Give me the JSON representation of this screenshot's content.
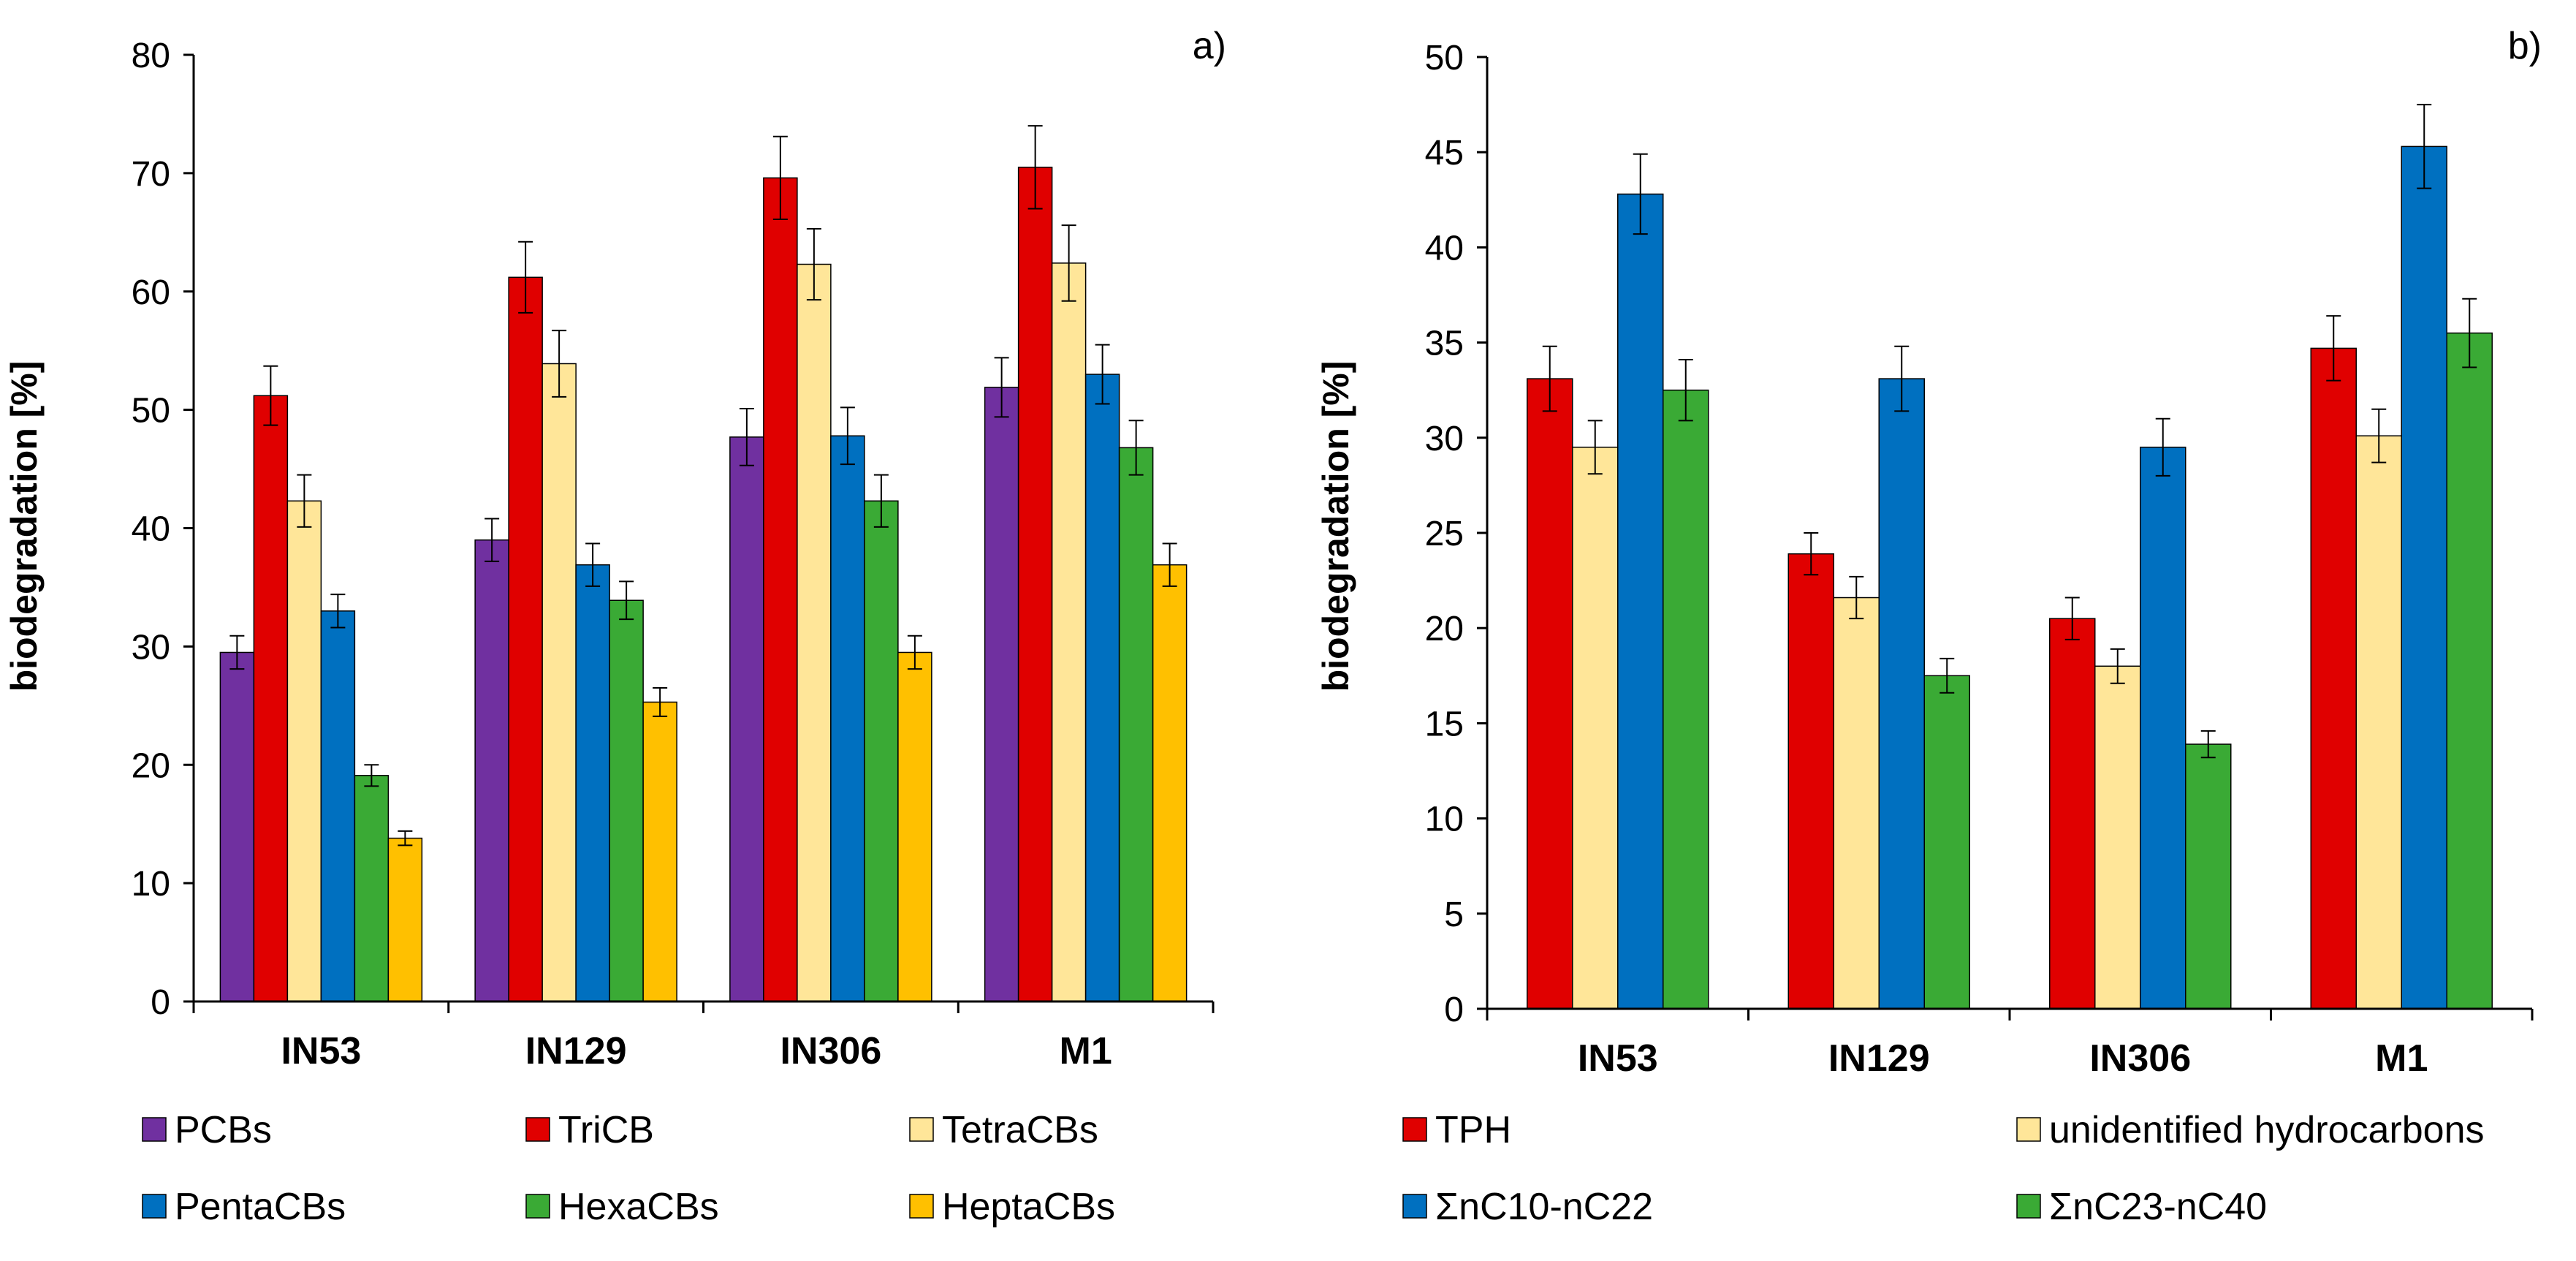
{
  "chart_data": [
    {
      "type": "bar",
      "panel_label": "a)",
      "title": "",
      "xlabel": "",
      "ylabel": "biodegradation  [%]",
      "ylim": [
        0,
        80
      ],
      "yticks": [
        0,
        10,
        20,
        30,
        40,
        50,
        60,
        70,
        80
      ],
      "grid": false,
      "legend_position": "bottom",
      "categories": [
        "IN53",
        "IN129",
        "IN306",
        "M1"
      ],
      "series": [
        {
          "name": "PCBs",
          "color": "#7030a0",
          "values": [
            29.5,
            39,
            47.7,
            51.9
          ],
          "errors": [
            1.4,
            1.8,
            2.4,
            2.5
          ]
        },
        {
          "name": "TriCB",
          "color": "#e00000",
          "values": [
            51.2,
            61.2,
            69.6,
            70.5
          ],
          "errors": [
            2.5,
            3.0,
            3.5,
            3.5
          ]
        },
        {
          "name": "TetraCBs",
          "color": "#ffe699",
          "values": [
            42.3,
            53.9,
            62.3,
            62.4
          ],
          "errors": [
            2.2,
            2.8,
            3.0,
            3.2
          ]
        },
        {
          "name": "PentaCBs",
          "color": "#0070c0",
          "values": [
            33.0,
            36.9,
            47.8,
            53.0
          ],
          "errors": [
            1.4,
            1.8,
            2.4,
            2.5
          ]
        },
        {
          "name": "HexaCBs",
          "color": "#3aaa35",
          "values": [
            19.1,
            33.9,
            42.3,
            46.8
          ],
          "errors": [
            0.9,
            1.6,
            2.2,
            2.3
          ]
        },
        {
          "name": "HeptaCBs",
          "color": "#ffc000",
          "values": [
            13.8,
            25.3,
            29.5,
            36.9
          ],
          "errors": [
            0.6,
            1.2,
            1.4,
            1.8
          ]
        }
      ]
    },
    {
      "type": "bar",
      "panel_label": "b)",
      "title": "",
      "xlabel": "",
      "ylabel": "biodegradation  [%]",
      "ylim": [
        0,
        50
      ],
      "yticks": [
        0,
        5,
        10,
        15,
        20,
        25,
        30,
        35,
        40,
        45,
        50
      ],
      "grid": false,
      "legend_position": "bottom",
      "categories": [
        "IN53",
        "IN129",
        "IN306",
        "M1"
      ],
      "series": [
        {
          "name": "TPH",
          "color": "#e00000",
          "values": [
            33.1,
            23.9,
            20.5,
            34.7
          ],
          "errors": [
            1.7,
            1.1,
            1.1,
            1.7
          ]
        },
        {
          "name": "unidentified hydrocarbons",
          "color": "#ffe699",
          "values": [
            29.5,
            21.6,
            18.0,
            30.1
          ],
          "errors": [
            1.4,
            1.1,
            0.9,
            1.4
          ]
        },
        {
          "name": "ΣnC10-nC22",
          "color": "#0070c0",
          "values": [
            42.8,
            33.1,
            29.5,
            45.3
          ],
          "errors": [
            2.1,
            1.7,
            1.5,
            2.2
          ]
        },
        {
          "name": "ΣnC23-nC40",
          "color": "#3aaa35",
          "values": [
            32.5,
            17.5,
            13.9,
            35.5
          ],
          "errors": [
            1.6,
            0.9,
            0.7,
            1.8
          ]
        }
      ]
    }
  ]
}
